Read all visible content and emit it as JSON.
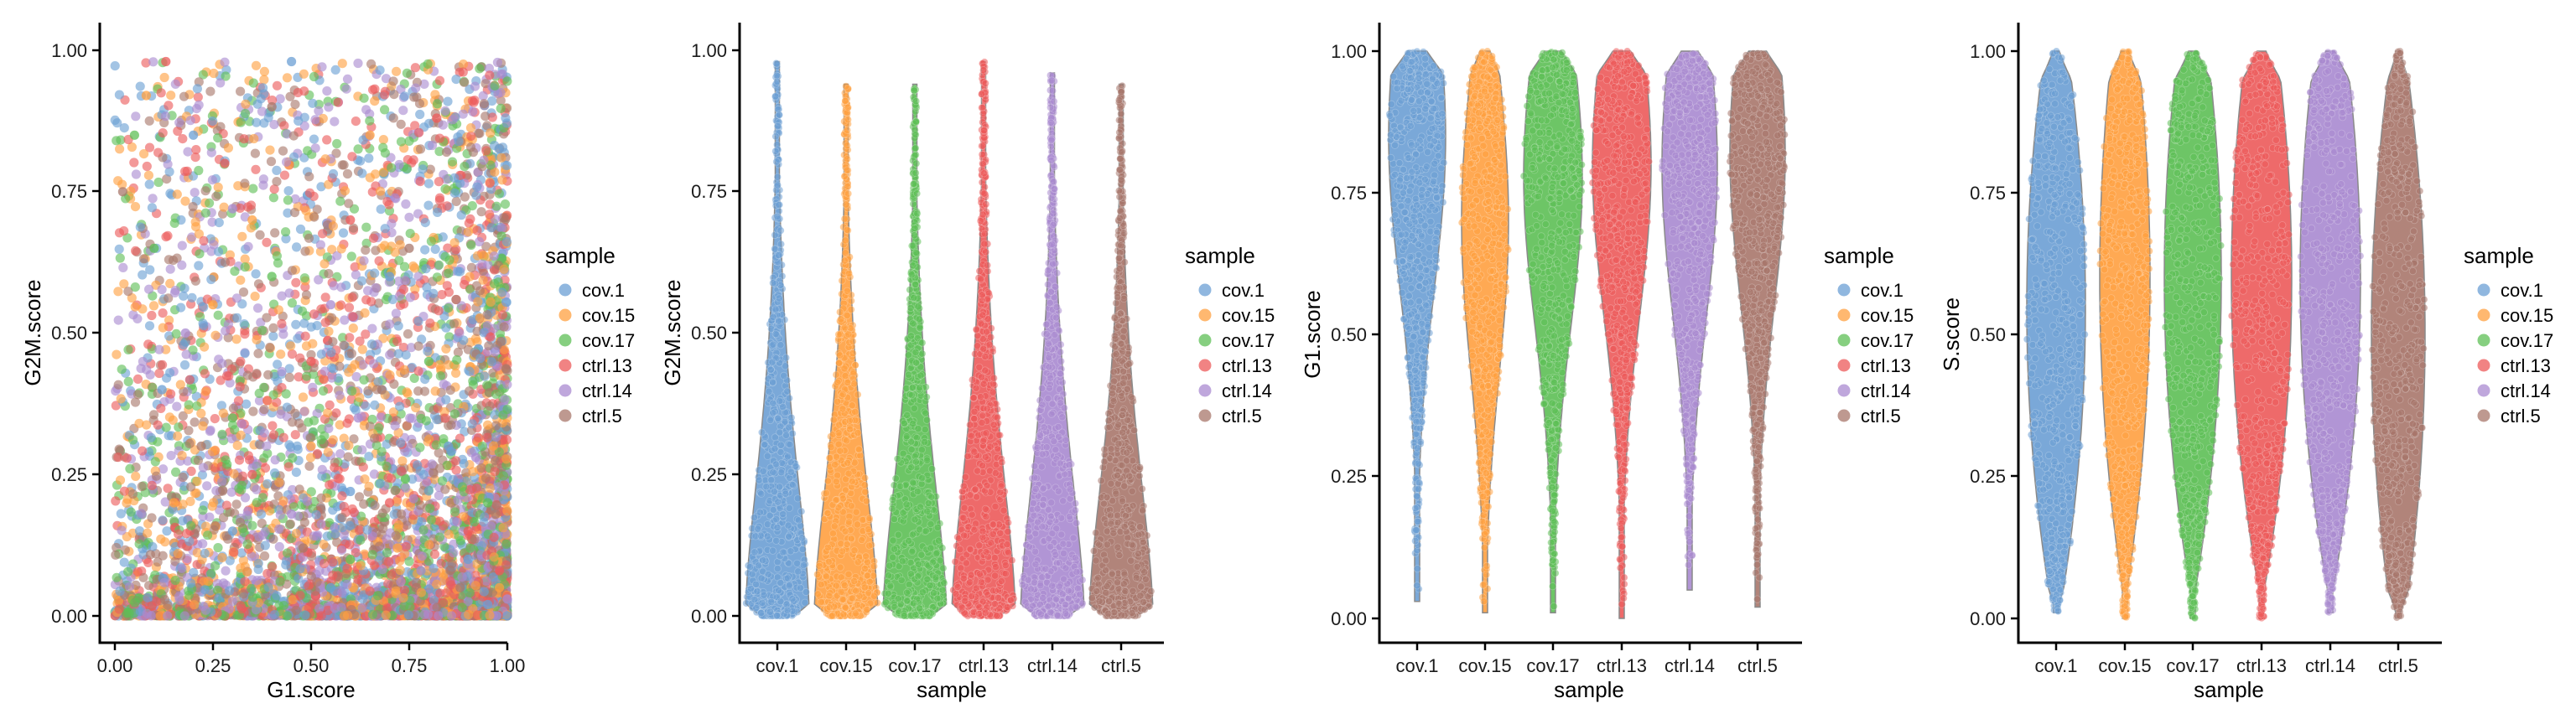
{
  "colors": {
    "cov.1": "#6b9fd4",
    "cov.15": "#ffa040",
    "cov.17": "#5dbf55",
    "ctrl.13": "#ec5a5a",
    "ctrl.14": "#a98ad0",
    "ctrl.5": "#a8776b"
  },
  "legend": {
    "title": "sample",
    "items": [
      "cov.1",
      "cov.15",
      "cov.17",
      "ctrl.13",
      "ctrl.14",
      "ctrl.5"
    ]
  },
  "chart_data": [
    {
      "type": "scatter",
      "xlabel": "G1.score",
      "ylabel": "G2M.score",
      "xlim": [
        0,
        1
      ],
      "ylim": [
        0,
        1
      ],
      "x_ticks": [
        "0.00",
        "0.25",
        "0.50",
        "0.75",
        "1.00"
      ],
      "y_ticks": [
        "0.00",
        "0.25",
        "0.50",
        "0.75",
        "1.00"
      ],
      "series": [
        {
          "name": "cov.1",
          "points": [
            [
              0.45,
              0.98
            ],
            [
              0.12,
              0.4
            ],
            [
              0.3,
              0.15
            ],
            [
              0.55,
              0.05
            ],
            [
              0.9,
              0.1
            ],
            [
              0.7,
              0.6
            ],
            [
              0.2,
              0.85
            ],
            [
              0.85,
              0.3
            ],
            [
              0.6,
              0.22
            ],
            [
              0.95,
              0.02
            ]
          ]
        },
        {
          "name": "cov.15",
          "points": [
            [
              0.08,
              0.92
            ],
            [
              0.35,
              0.7
            ],
            [
              0.5,
              0.3
            ],
            [
              0.72,
              0.12
            ],
            [
              0.98,
              0.05
            ],
            [
              0.25,
              0.55
            ],
            [
              0.65,
              0.85
            ],
            [
              0.15,
              0.2
            ]
          ]
        },
        {
          "name": "cov.17",
          "points": [
            [
              0.05,
              0.85
            ],
            [
              0.4,
              0.6
            ],
            [
              0.6,
              0.1
            ],
            [
              0.8,
              0.45
            ],
            [
              0.95,
              0.2
            ],
            [
              0.3,
              0.35
            ],
            [
              0.1,
              0.65
            ]
          ]
        },
        {
          "name": "ctrl.13",
          "points": [
            [
              0.13,
              0.98
            ],
            [
              0.28,
              0.8
            ],
            [
              0.5,
              0.45
            ],
            [
              0.7,
              0.2
            ],
            [
              0.9,
              0.15
            ],
            [
              0.98,
              0.08
            ],
            [
              0.35,
              0.25
            ],
            [
              0.6,
              0.7
            ],
            [
              0.82,
              0.88
            ]
          ]
        },
        {
          "name": "ctrl.14",
          "points": [
            [
              0.18,
              0.5
            ],
            [
              0.45,
              0.18
            ],
            [
              0.62,
              0.35
            ],
            [
              0.78,
              0.08
            ],
            [
              0.92,
              0.28
            ],
            [
              1.0,
              0.03
            ],
            [
              0.55,
              0.55
            ],
            [
              0.3,
              0.72
            ]
          ]
        },
        {
          "name": "ctrl.5",
          "points": [
            [
              0.02,
              0.75
            ],
            [
              0.22,
              0.3
            ],
            [
              0.48,
              0.12
            ],
            [
              0.68,
              0.4
            ],
            [
              0.88,
              0.05
            ],
            [
              0.97,
              0.18
            ],
            [
              0.4,
              0.9
            ],
            [
              0.75,
              0.65
            ]
          ]
        }
      ]
    },
    {
      "type": "violin",
      "xlabel": "sample",
      "ylabel": "G2M.score",
      "ylim": [
        0,
        1
      ],
      "categories": [
        "cov.1",
        "cov.15",
        "cov.17",
        "ctrl.13",
        "ctrl.14",
        "ctrl.5"
      ],
      "y_ticks": [
        "0.00",
        "0.25",
        "0.50",
        "0.75",
        "1.00"
      ],
      "max_values": [
        0.98,
        0.94,
        0.94,
        0.98,
        0.96,
        0.94
      ]
    },
    {
      "type": "violin",
      "xlabel": "sample",
      "ylabel": "G1.score",
      "ylim": [
        0,
        1
      ],
      "categories": [
        "cov.1",
        "cov.15",
        "cov.17",
        "ctrl.13",
        "ctrl.14",
        "ctrl.5"
      ],
      "y_ticks": [
        "0.00",
        "0.25",
        "0.50",
        "0.75",
        "1.00"
      ],
      "min_values": [
        0.03,
        0.01,
        0.01,
        0.0,
        0.05,
        0.02
      ]
    },
    {
      "type": "violin",
      "xlabel": "sample",
      "ylabel": "S.score",
      "ylim": [
        0,
        1
      ],
      "categories": [
        "cov.1",
        "cov.15",
        "cov.17",
        "ctrl.13",
        "ctrl.14",
        "ctrl.5"
      ],
      "y_ticks": [
        "0.00",
        "0.25",
        "0.50",
        "0.75",
        "1.00"
      ],
      "min_values": [
        0.01,
        0.0,
        0.0,
        0.0,
        0.01,
        0.0
      ]
    }
  ]
}
